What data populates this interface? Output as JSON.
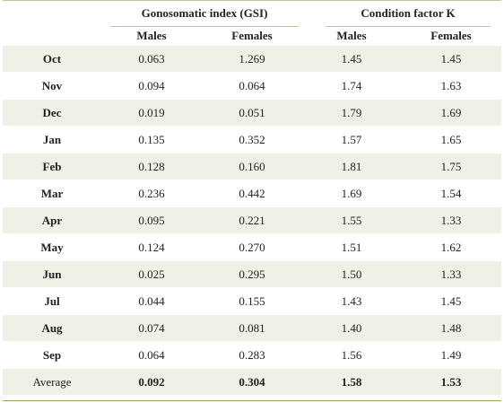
{
  "header": {
    "group_gsi": "Gonosomatic index (GSI)",
    "group_k": "Condition factor K",
    "sub": [
      "Males",
      "Females",
      "Males",
      "Females"
    ]
  },
  "rows": [
    {
      "month": "Oct",
      "gsi_m": "0.063",
      "gsi_f": "1.269",
      "k_m": "1.45",
      "k_f": "1.45"
    },
    {
      "month": "Nov",
      "gsi_m": "0.094",
      "gsi_f": "0.064",
      "k_m": "1.74",
      "k_f": "1.63"
    },
    {
      "month": "Dec",
      "gsi_m": "0.019",
      "gsi_f": "0.051",
      "k_m": "1.79",
      "k_f": "1.69"
    },
    {
      "month": "Jan",
      "gsi_m": "0.135",
      "gsi_f": "0.352",
      "k_m": "1.57",
      "k_f": "1.65"
    },
    {
      "month": "Feb",
      "gsi_m": "0.128",
      "gsi_f": "0.160",
      "k_m": "1.81",
      "k_f": "1.75"
    },
    {
      "month": "Mar",
      "gsi_m": "0.236",
      "gsi_f": "0.442",
      "k_m": "1.69",
      "k_f": "1.54"
    },
    {
      "month": "Apr",
      "gsi_m": "0.095",
      "gsi_f": "0.221",
      "k_m": "1.55",
      "k_f": "1.33"
    },
    {
      "month": "May",
      "gsi_m": "0.124",
      "gsi_f": "0.270",
      "k_m": "1.51",
      "k_f": "1.62"
    },
    {
      "month": "Jun",
      "gsi_m": "0.025",
      "gsi_f": "0.295",
      "k_m": "1.50",
      "k_f": "1.33"
    },
    {
      "month": "Jul",
      "gsi_m": "0.044",
      "gsi_f": "0.155",
      "k_m": "1.43",
      "k_f": "1.45"
    },
    {
      "month": "Aug",
      "gsi_m": "0.074",
      "gsi_f": "0.081",
      "k_m": "1.40",
      "k_f": "1.48"
    },
    {
      "month": "Sep",
      "gsi_m": "0.064",
      "gsi_f": "0.283",
      "k_m": "1.56",
      "k_f": "1.49"
    }
  ],
  "average": {
    "label": "Average",
    "gsi_m": "0.092",
    "gsi_f": "0.304",
    "k_m": "1.58",
    "k_f": "1.53"
  },
  "colors": {
    "shade": "#edf1e6",
    "rule": "#b9c79a"
  }
}
